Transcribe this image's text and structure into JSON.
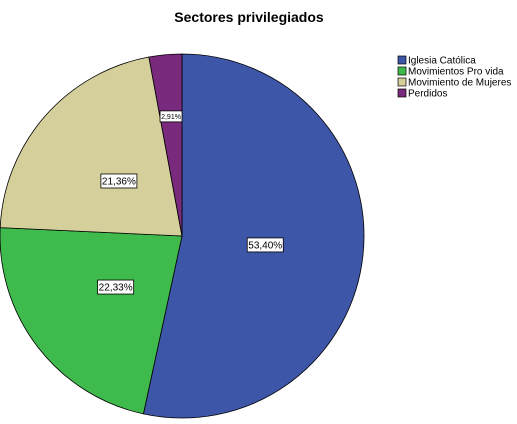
{
  "chart_data": {
    "type": "pie",
    "title": "Sectores privilegiados",
    "slices": [
      {
        "label": "Iglesia Católica",
        "value": 53.4,
        "display": "53,40%",
        "color": "#3d56a8"
      },
      {
        "label": "Movimientos Pro vida",
        "value": 22.33,
        "display": "22,33%",
        "color": "#3fba4c"
      },
      {
        "label": "Movimiento de Mujeres",
        "value": 21.36,
        "display": "21,36%",
        "color": "#d5cf9b"
      },
      {
        "label": "Perdidos",
        "value": 2.91,
        "display": "2,91%",
        "color": "#7a2a7c"
      }
    ],
    "legend_position": "top-right",
    "start_angle": "12 o'clock",
    "direction": "clockwise"
  }
}
